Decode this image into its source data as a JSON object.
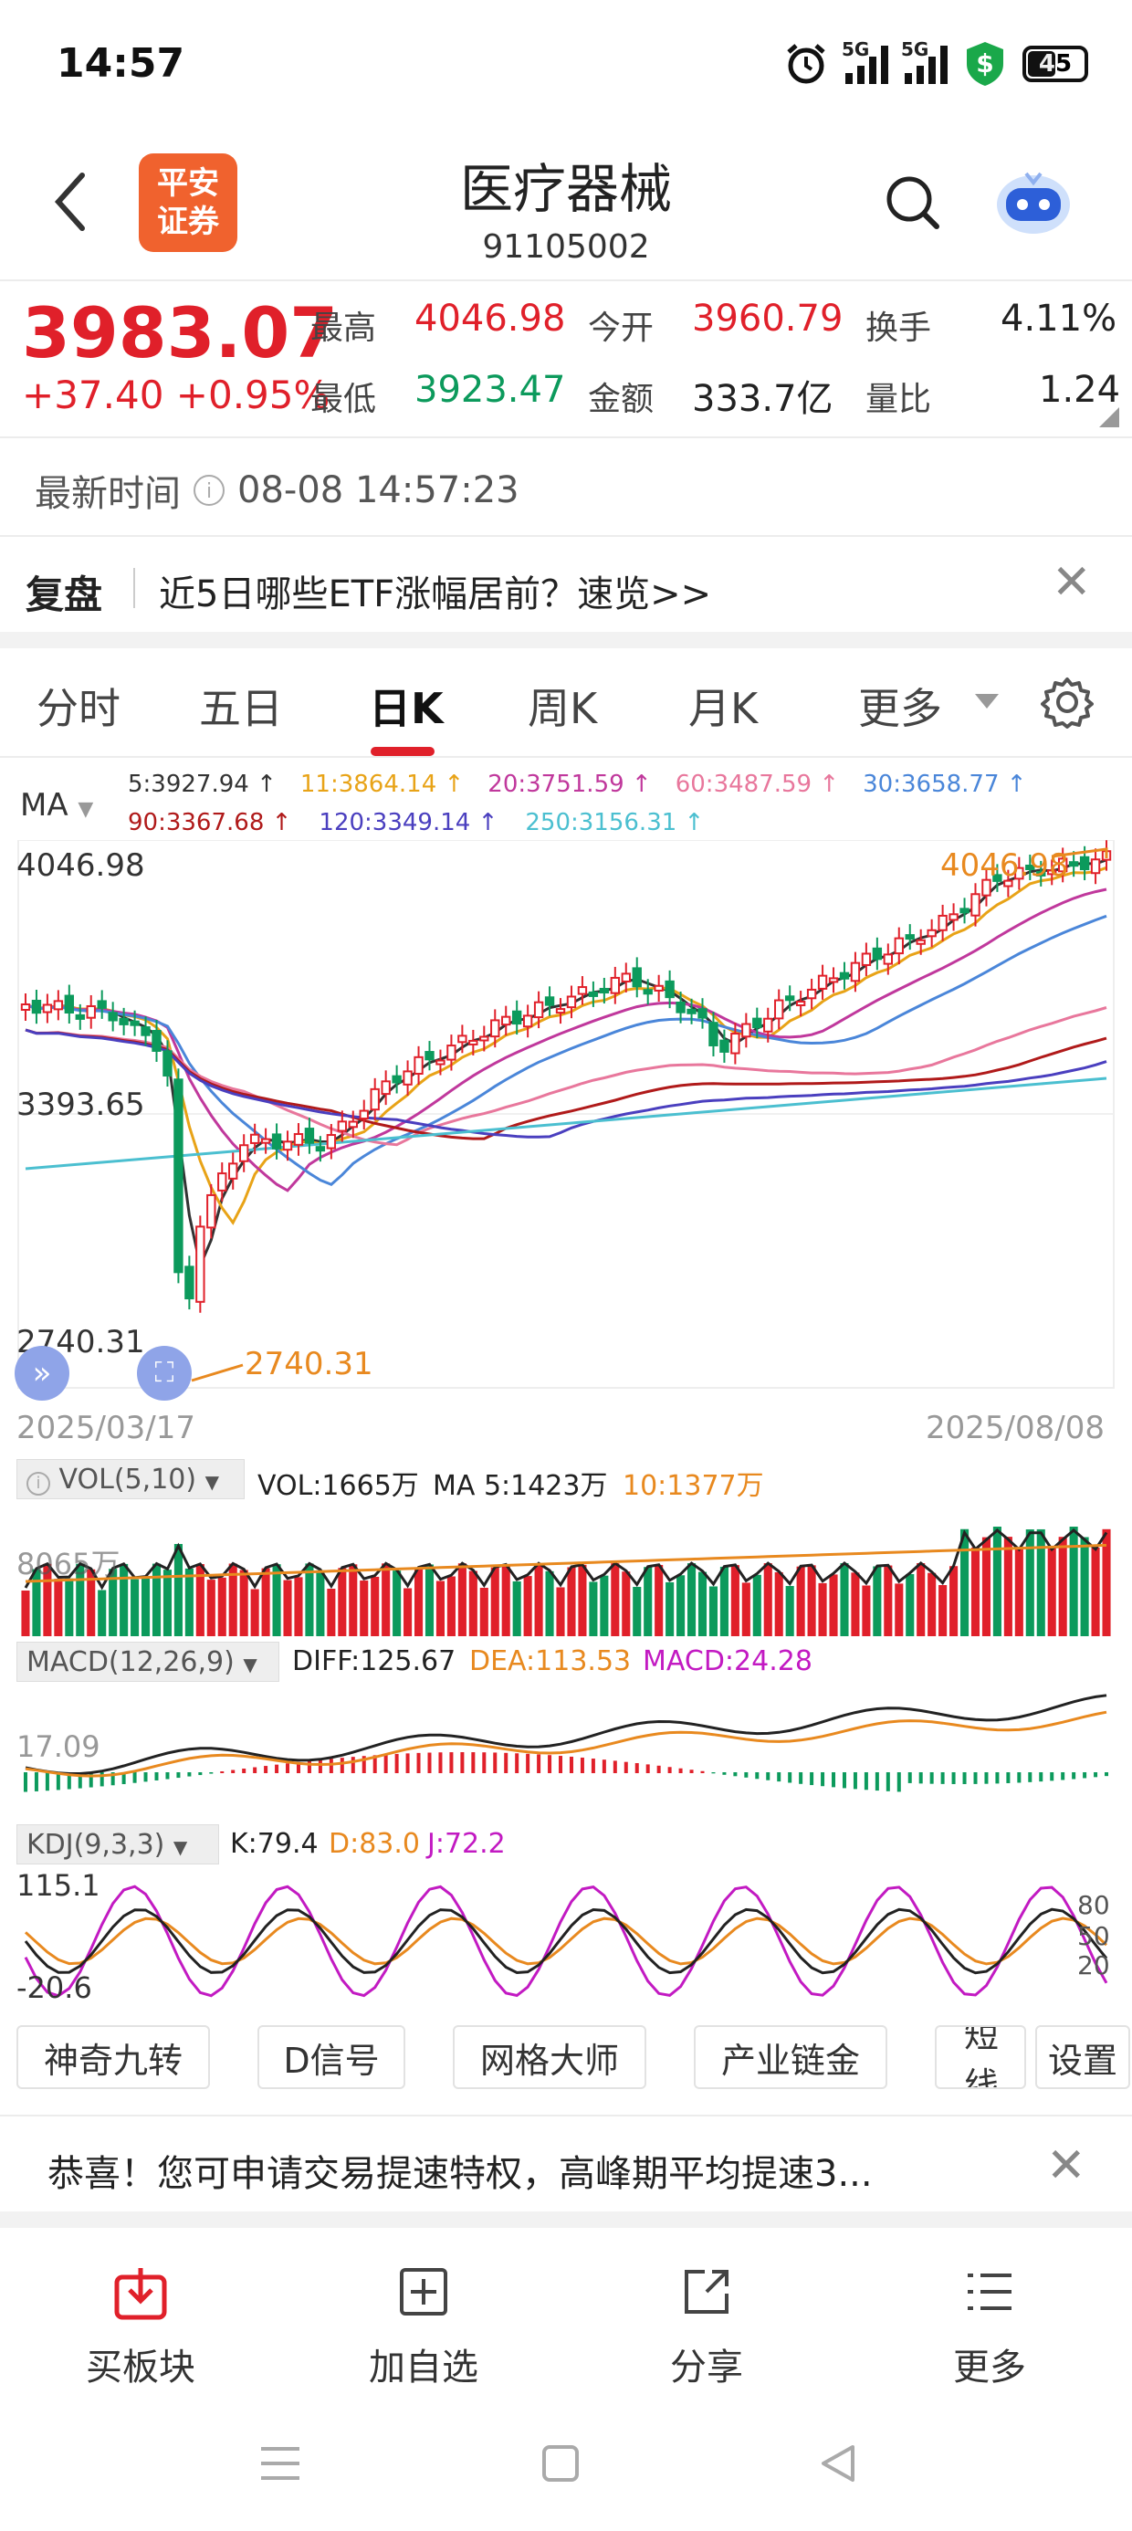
{
  "status_bar": {
    "time": "14:57",
    "battery": "45",
    "net1": "5G",
    "net2": "5G"
  },
  "header": {
    "title": "医疗器械",
    "code": "91105002",
    "logo_line1": "平安",
    "logo_line2": "证券"
  },
  "quote": {
    "price": "3983.07",
    "change": "+37.40 +0.95%",
    "high_label": "最高",
    "high": "4046.98",
    "open_label": "今开",
    "open": "3960.79",
    "turnover_label": "换手",
    "turnover": "4.11%",
    "low_label": "最低",
    "low": "3923.47",
    "amount_label": "金额",
    "amount": "333.7亿",
    "volratio_label": "量比",
    "volratio": "1.24"
  },
  "update": {
    "label": "最新时间",
    "value": "08-08 14:57:23"
  },
  "banner": {
    "tag": "复盘",
    "text": "近5日哪些ETF涨幅居前？速览>>"
  },
  "tabs": [
    "分时",
    "五日",
    "日K",
    "周K",
    "月K",
    "更多"
  ],
  "ma_legend": {
    "selector": "MA",
    "row1": [
      {
        "text": "5:3927.94 ↑",
        "color": "#333333"
      },
      {
        "text": "11:3864.14 ↑",
        "color": "#e8a317"
      },
      {
        "text": "20:3751.59 ↑",
        "color": "#c0389c"
      },
      {
        "text": "60:3487.59 ↑",
        "color": "#e8779c"
      },
      {
        "text": "30:3658.77 ↑",
        "color": "#4a86d9"
      }
    ],
    "row2": [
      {
        "text": "90:3367.68 ↑",
        "color": "#b01a1a"
      },
      {
        "text": "120:3349.14 ↑",
        "color": "#4a3fbf"
      },
      {
        "text": "250:3156.31 ↑",
        "color": "#4bbfd0"
      }
    ]
  },
  "kline_axis": {
    "top": "4046.98",
    "mid": "3393.65",
    "bottom": "2740.31",
    "max_marker": "4046.98",
    "min_marker": "2740.31",
    "date_start": "2025/03/17",
    "date_end": "2025/08/08"
  },
  "vol_panel": {
    "selector": "VOL(5,10)",
    "vol": "VOL:1665万",
    "ma5": "MA 5:1423万",
    "ma10": "10:1377万",
    "axis": "8065万"
  },
  "macd_panel": {
    "selector": "MACD(12,26,9)",
    "diff": "DIFF:125.67",
    "dea": "DEA:113.53",
    "macd": "MACD:24.28",
    "axis": "17.09"
  },
  "kdj_panel": {
    "selector": "KDJ(9,3,3)",
    "k": "K:79.4",
    "d": "D:83.0",
    "j": "J:72.2",
    "top": "115.1",
    "bottom": "-20.6",
    "levels": [
      "80",
      "50",
      "20"
    ]
  },
  "chips": [
    "神奇九转",
    "D信号",
    "网格大师",
    "产业链金",
    "短线",
    "设置"
  ],
  "promo": {
    "text": "恭喜！您可申请交易提速特权，高峰期平均提速3..."
  },
  "bottom_nav": [
    {
      "label": "买板块",
      "icon": "download-box-icon"
    },
    {
      "label": "加自选",
      "icon": "plus-box-icon"
    },
    {
      "label": "分享",
      "icon": "share-icon"
    },
    {
      "label": "更多",
      "icon": "menu-list-icon"
    }
  ],
  "colors": {
    "up": "#e0202a",
    "down": "#0c9a5c",
    "accent_orange": "#e8891f"
  }
}
